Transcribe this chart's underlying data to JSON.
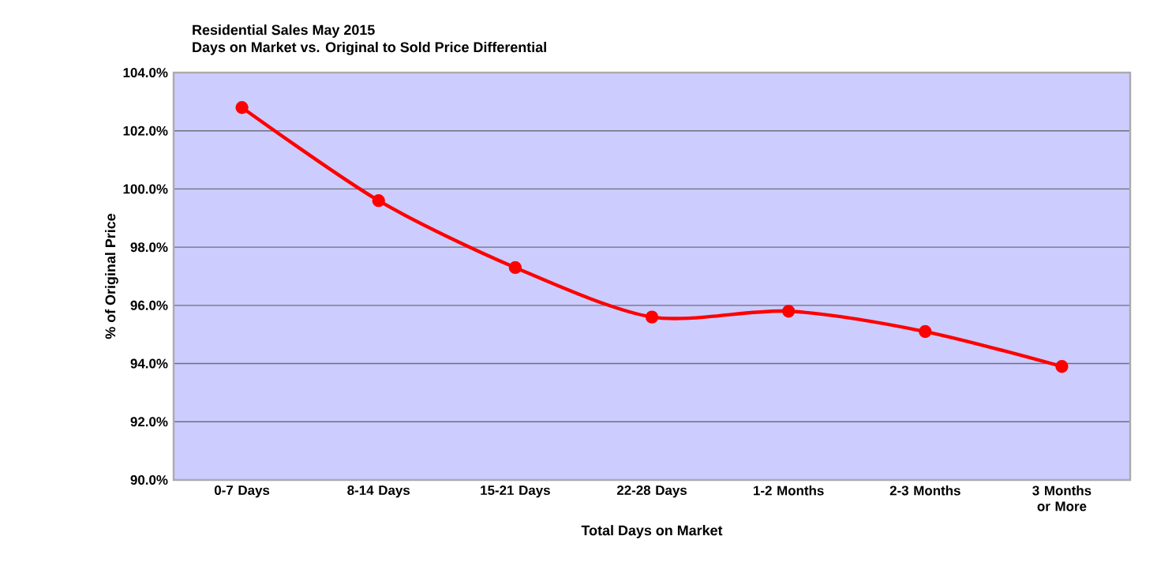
{
  "chart_data": {
    "type": "line",
    "title": "Residential Sales May 2015",
    "subtitle": "Days on Market vs. Original to Sold Price Differential",
    "xlabel": "Total Days on Market",
    "ylabel": "% of Original Price",
    "categories": [
      "0-7 Days",
      "8-14 Days",
      "15-21 Days",
      "22-28 Days",
      "1-2 Months",
      "2-3 Months",
      "3 Months or More"
    ],
    "series": [
      {
        "color": "#ff0000",
        "values": [
          102.8,
          99.6,
          97.3,
          95.6,
          95.8,
          95.1,
          93.9
        ]
      }
    ],
    "ylim": [
      90,
      104
    ],
    "yticks": [
      {
        "value": 90,
        "label": "90.0%"
      },
      {
        "value": 92,
        "label": "92.0%"
      },
      {
        "value": 94,
        "label": "94.0%"
      },
      {
        "value": 96,
        "label": "96.0%"
      },
      {
        "value": 98,
        "label": "98.0%"
      },
      {
        "value": 100,
        "label": "100.0%"
      },
      {
        "value": 102,
        "label": "102.0%"
      },
      {
        "value": 104,
        "label": "104.0%"
      }
    ],
    "grid": "y",
    "marker": "circle",
    "line_style": "solid"
  }
}
